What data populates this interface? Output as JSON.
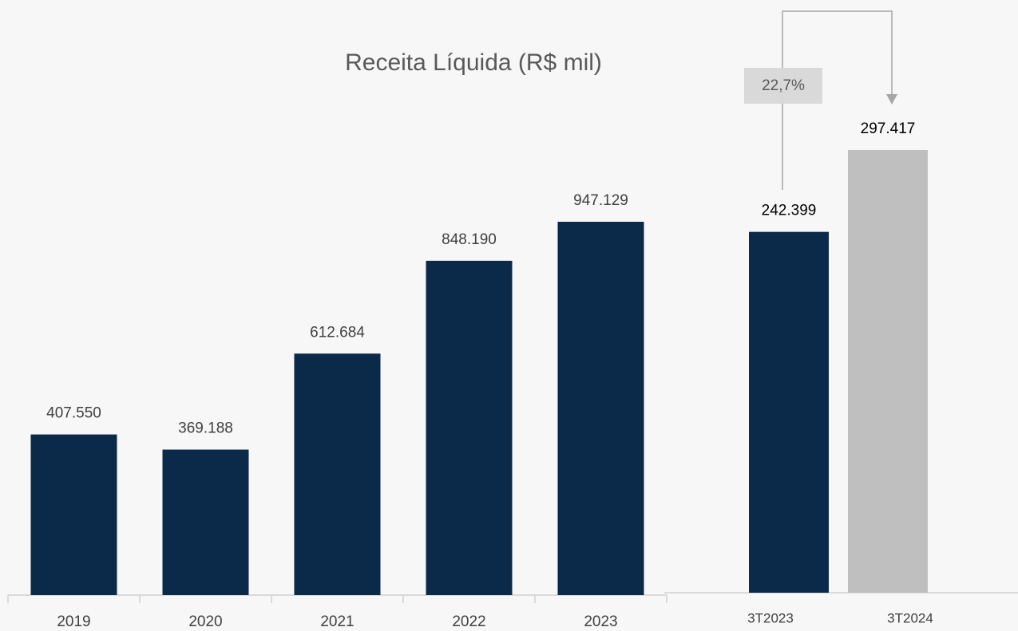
{
  "chart_data": [
    {
      "type": "bar",
      "title": "Receita Líquida (R$ mil)",
      "categories": [
        "2019",
        "2020",
        "2021",
        "2022",
        "2023"
      ],
      "values": [
        407550,
        369188,
        612684,
        848190,
        947129
      ],
      "value_labels": [
        "407.550",
        "369.188",
        "612.684",
        "848.190",
        "947.129"
      ],
      "color": "#0b2a4a"
    },
    {
      "type": "bar",
      "categories": [
        "3T2023",
        "3T2024"
      ],
      "values": [
        242399,
        297417
      ],
      "value_labels": [
        "242.399",
        "297.417"
      ],
      "colors": [
        "#0b2a4a",
        "#bfbfbf"
      ],
      "annotation": "22,7%"
    }
  ]
}
